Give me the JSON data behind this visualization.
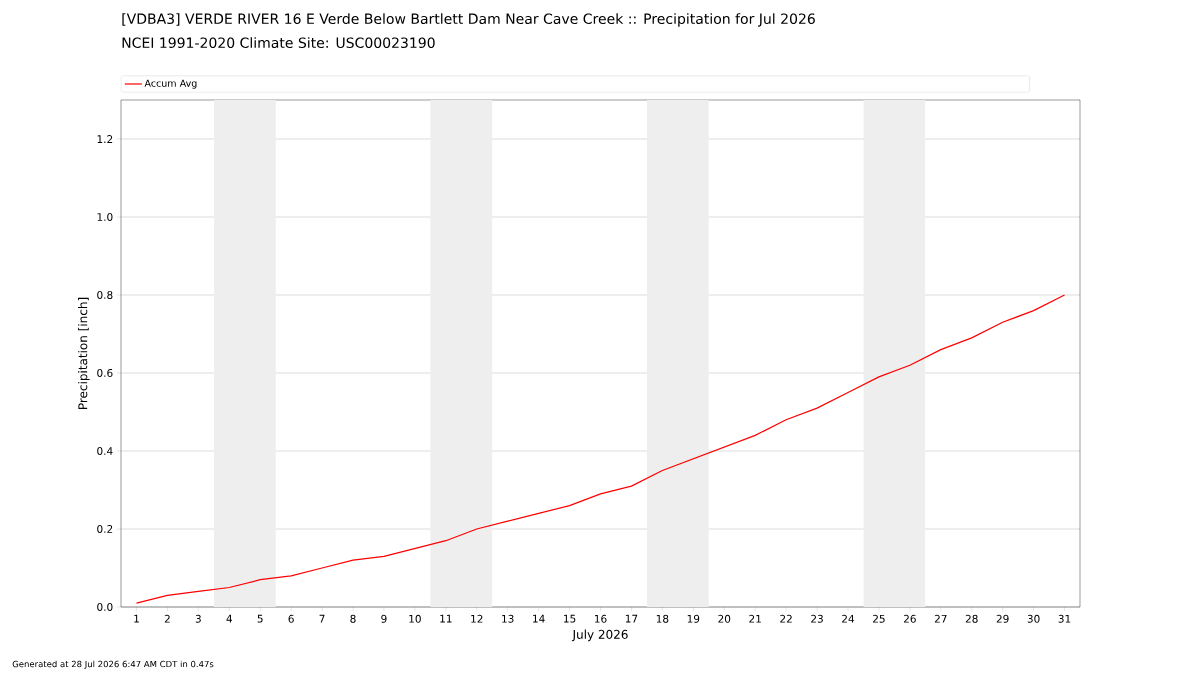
{
  "chart_data": {
    "type": "line",
    "title": "[VDBA3] VERDE RIVER 16 E Verde Below Bartlett Dam Near Cave Creek :: Precipitation for Jul 2026",
    "subtitle": "NCEI 1991-2020 Climate Site: USC00023190",
    "xlabel": "July 2026",
    "ylabel": "Precipitation [inch]",
    "x": [
      1,
      2,
      3,
      4,
      5,
      6,
      7,
      8,
      9,
      10,
      11,
      12,
      13,
      14,
      15,
      16,
      17,
      18,
      19,
      20,
      21,
      22,
      23,
      24,
      25,
      26,
      27,
      28,
      29,
      30,
      31
    ],
    "series": [
      {
        "name": "Accum Avg",
        "color": "#ff0000",
        "values": [
          0.01,
          0.03,
          0.04,
          0.05,
          0.07,
          0.08,
          0.1,
          0.12,
          0.13,
          0.15,
          0.17,
          0.2,
          0.22,
          0.24,
          0.26,
          0.29,
          0.31,
          0.35,
          0.38,
          0.41,
          0.44,
          0.48,
          0.51,
          0.55,
          0.59,
          0.62,
          0.66,
          0.69,
          0.73,
          0.76,
          0.8
        ]
      }
    ],
    "xlim": [
      0.5,
      31.5
    ],
    "xticks": [
      1,
      2,
      3,
      4,
      5,
      6,
      7,
      8,
      9,
      10,
      11,
      12,
      13,
      14,
      15,
      16,
      17,
      18,
      19,
      20,
      21,
      22,
      23,
      24,
      25,
      26,
      27,
      28,
      29,
      30,
      31
    ],
    "ylim": [
      0,
      1.3
    ],
    "yticks": [
      {
        "value": 0,
        "label": "0.0"
      },
      {
        "value": 0.2,
        "label": "0.2"
      },
      {
        "value": 0.4,
        "label": "0.4"
      },
      {
        "value": 0.6,
        "label": "0.6"
      },
      {
        "value": 0.8,
        "label": "0.8"
      },
      {
        "value": 1.0,
        "label": "1.0"
      },
      {
        "value": 1.2,
        "label": "1.2"
      }
    ],
    "bands": [
      {
        "axis": "x",
        "from": 3.5,
        "to": 5.5,
        "color": "#eeeeee"
      },
      {
        "axis": "x",
        "from": 10.5,
        "to": 12.5,
        "color": "#eeeeee"
      },
      {
        "axis": "x",
        "from": 17.5,
        "to": 19.5,
        "color": "#eeeeee"
      },
      {
        "axis": "x",
        "from": 24.5,
        "to": 26.5,
        "color": "#eeeeee"
      }
    ],
    "grid": "y",
    "legend": "top",
    "marker": "none",
    "line_style": "solid",
    "annotations": [
      "Generated at 28 Jul 2026 6:47 AM CDT in 0.47s"
    ]
  }
}
